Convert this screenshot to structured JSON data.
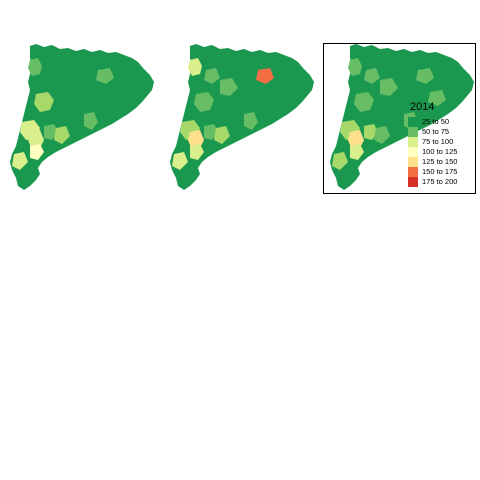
{
  "maps": [
    {
      "id": "map-1",
      "fills": {
        "base": "#1a9850",
        "r1": "#66bd63",
        "r2": "#a6d96a",
        "r3": "#d9ef8b",
        "r4": "#d9ef8b",
        "r5": "#ffffbf",
        "r6": "#66bd63",
        "r7": "#a6d96a",
        "r8": "#66bd63",
        "r9": "#1a9850",
        "r10": "#1a9850",
        "r11": "#1a9850",
        "r12": "#66bd63",
        "r13": "#d9ef8b"
      }
    },
    {
      "id": "map-2",
      "fills": {
        "base": "#1a9850",
        "r1": "#d9ef8b",
        "r2": "#66bd63",
        "r3": "#a6d96a",
        "r4": "#fee08b",
        "r5": "#d9ef8b",
        "r6": "#66bd63",
        "r7": "#a6d96a",
        "r8": "#66bd63",
        "r9": "#66bd63",
        "r10": "#66bd63",
        "r11": "#1a9850",
        "r12": "#f46d43",
        "r13": "#d9ef8b"
      }
    },
    {
      "id": "map-3",
      "fills": {
        "base": "#1a9850",
        "r1": "#66bd63",
        "r2": "#66bd63",
        "r3": "#a6d96a",
        "r4": "#fee08b",
        "r5": "#d9ef8b",
        "r6": "#a6d96a",
        "r7": "#66bd63",
        "r8": "#66bd63",
        "r9": "#66bd63",
        "r10": "#66bd63",
        "r11": "#66bd63",
        "r12": "#66bd63",
        "r13": "#a6d96a"
      }
    }
  ],
  "legend": {
    "title": "2014",
    "items": [
      {
        "label": "25 to 50",
        "color": "#1a9850"
      },
      {
        "label": "50 to 75",
        "color": "#66bd63"
      },
      {
        "label": "75 to 100",
        "color": "#d9ef8b"
      },
      {
        "label": "100 to 125",
        "color": "#ffffbf"
      },
      {
        "label": "125 to 150",
        "color": "#fee08b"
      },
      {
        "label": "150 to 175",
        "color": "#f46d43"
      },
      {
        "label": "175 to 200",
        "color": "#d73027"
      }
    ]
  }
}
